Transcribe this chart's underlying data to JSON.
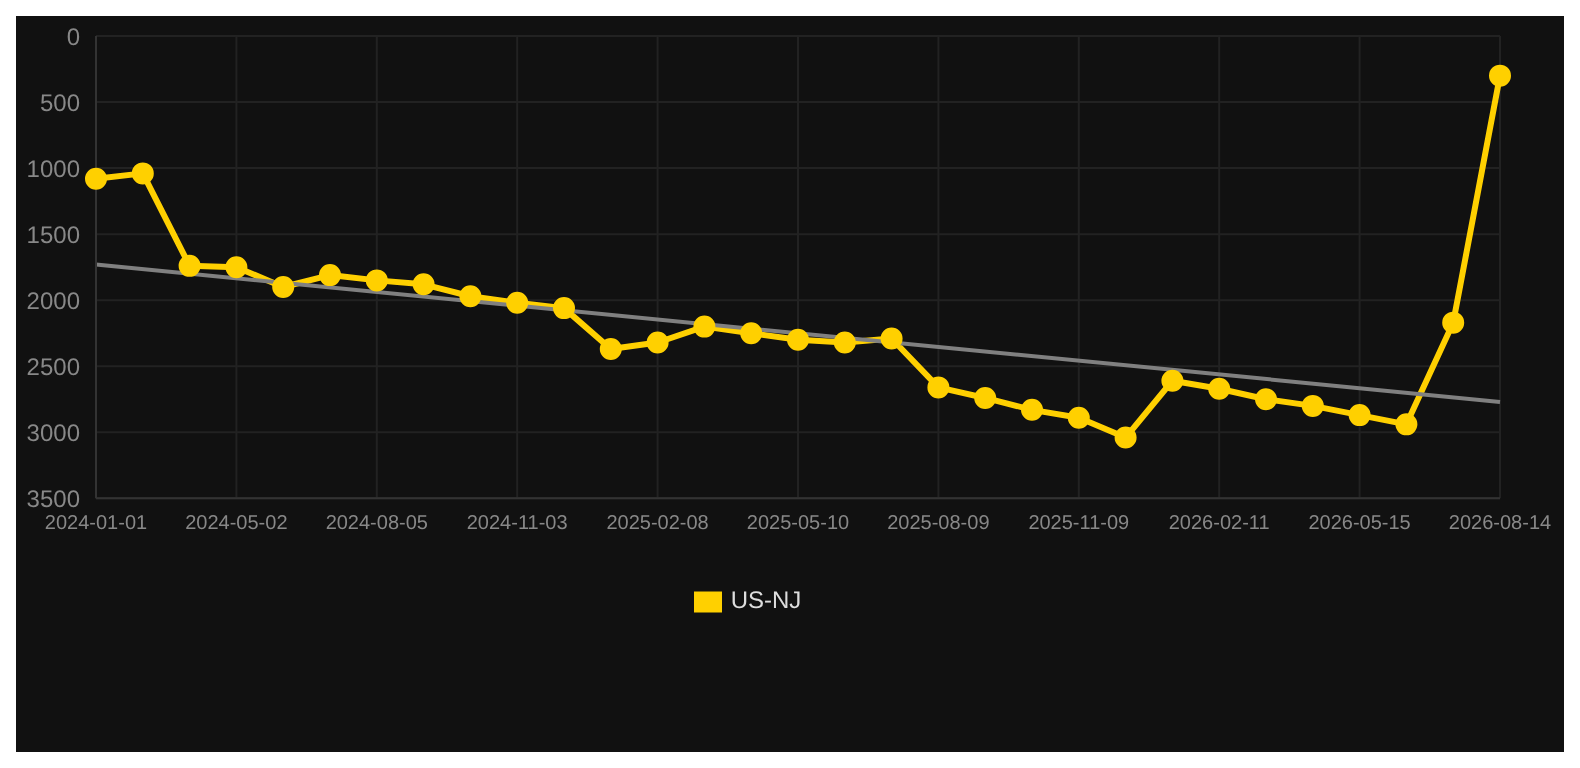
{
  "chart_data": {
    "type": "line",
    "categories": [
      "2024-01-01",
      null,
      null,
      "2024-05-02",
      null,
      null,
      "2024-08-05",
      null,
      null,
      "2024-11-03",
      null,
      null,
      "2025-02-08",
      null,
      null,
      "2025-05-10",
      null,
      null,
      "2025-08-09",
      null,
      null,
      "2025-11-09",
      null,
      null,
      "2026-02-11",
      null,
      null,
      "2026-05-15",
      null,
      null,
      "2026-08-14"
    ],
    "series": [
      {
        "name": "US-NJ",
        "color": "#ffd000",
        "marker": "circle",
        "values": [
          1080,
          1040,
          1740,
          1750,
          1900,
          1810,
          1850,
          1880,
          1970,
          2020,
          2060,
          2370,
          2320,
          2200,
          2250,
          2300,
          2320,
          2290,
          2660,
          2740,
          2830,
          2890,
          3040,
          2610,
          2670,
          2750,
          2800,
          2870,
          2940,
          2170,
          300
        ]
      },
      {
        "type": "line",
        "color": "#808080",
        "marker": "none",
        "values": [
          1730,
          null,
          null,
          null,
          null,
          null,
          null,
          null,
          null,
          null,
          null,
          null,
          null,
          null,
          null,
          null,
          null,
          null,
          null,
          null,
          null,
          null,
          null,
          null,
          null,
          null,
          null,
          null,
          null,
          null,
          2770
        ]
      }
    ],
    "ylim": [
      3500,
      0
    ],
    "yticks": [
      0,
      500,
      1000,
      1500,
      2000,
      2500,
      3000,
      3500
    ],
    "grid": true,
    "legend": "bottom"
  }
}
